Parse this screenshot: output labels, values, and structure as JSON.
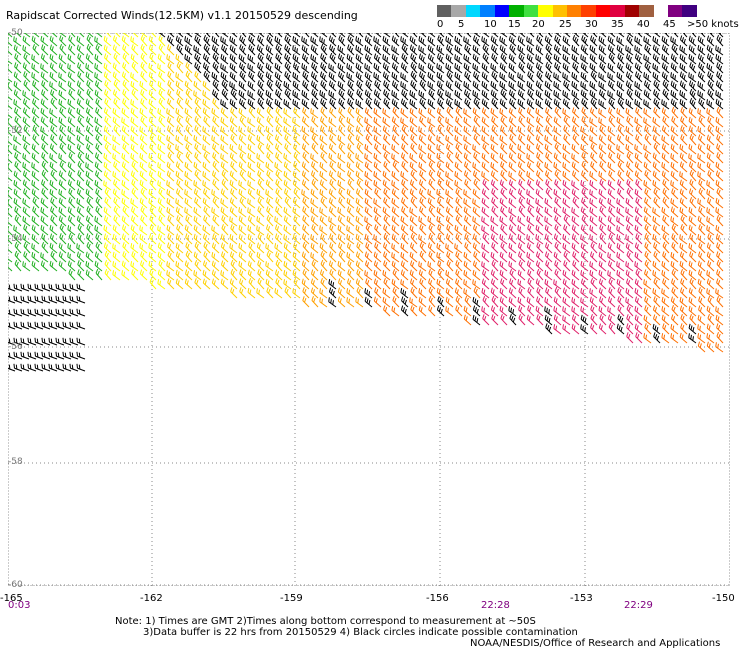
{
  "title": "Rapidscat Corrected Winds(12.5KM) v1.1 20150529 descending",
  "legend": {
    "colors": [
      "#606060",
      "#a8a8a8",
      "#00d8ff",
      "#0080ff",
      "#0000ff",
      "#00b000",
      "#40e040",
      "#ffff00",
      "#ffc000",
      "#ff8000",
      "#ff4000",
      "#ff0000",
      "#e00040",
      "#a00000",
      "#a06040",
      "#ffffff",
      "#800080",
      "#400080"
    ],
    "labels": [
      "0",
      "5",
      "10",
      "15",
      "20",
      "25",
      "30",
      "35",
      "40",
      "45",
      ">50 knots"
    ]
  },
  "axes": {
    "lat_labels": [
      "-50",
      "-52",
      "-54",
      "-56",
      "-58",
      "-60"
    ],
    "lon_labels": [
      "-165",
      "-162",
      "-159",
      "-156",
      "-153",
      "-150"
    ]
  },
  "times": [
    "0:03",
    "22:28",
    "22:29"
  ],
  "notes": [
    "Note: 1) Times are GMT 2)Times along bottom correspond to measurement at ~50S",
    "3)Data buffer is 22 hrs from 20150529 4) Black circles indicate possible contamination",
    "NOAA/NESDIS/Office of Research and Applications"
  ]
}
